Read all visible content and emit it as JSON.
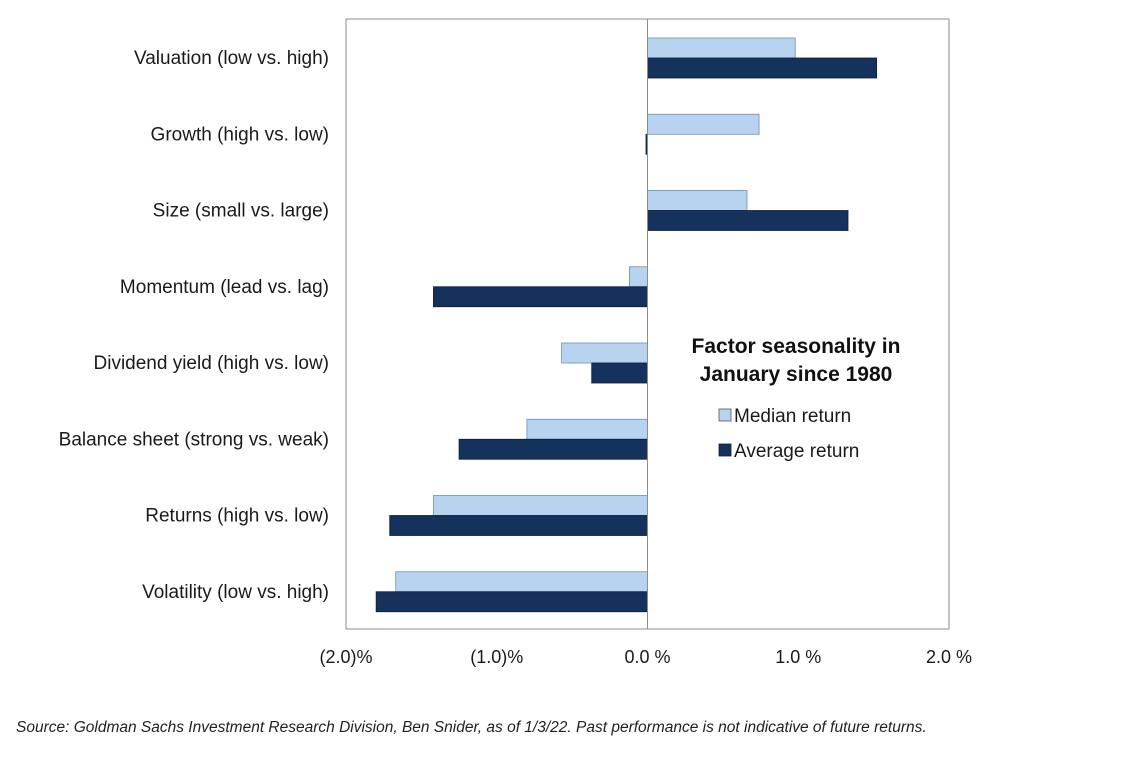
{
  "chart_data": {
    "type": "bar",
    "orientation": "horizontal",
    "title": "Factor seasonality in January since 1980",
    "title_lines": [
      "Factor seasonality in",
      "January since 1980"
    ],
    "categories": [
      "Valuation (low vs. high)",
      "Growth (high vs. low)",
      "Size (small vs. large)",
      "Momentum (lead vs. lag)",
      "Dividend yield (high vs. low)",
      "Balance sheet (strong vs. weak)",
      "Returns (high vs. low)",
      "Volatility (low vs. high)"
    ],
    "series": [
      {
        "name": "Median return",
        "color": "#b7d3f0",
        "values": [
          0.98,
          0.74,
          0.66,
          -0.12,
          -0.57,
          -0.8,
          -1.42,
          -1.67
        ]
      },
      {
        "name": "Average return",
        "color": "#15325d",
        "values": [
          1.52,
          -0.01,
          1.33,
          -1.42,
          -0.37,
          -1.25,
          -1.71,
          -1.8
        ]
      }
    ],
    "xlim": [
      -2.0,
      2.0
    ],
    "x_ticks": [
      -2.0,
      -1.0,
      0.0,
      1.0,
      2.0
    ],
    "x_tick_labels": [
      "(2.0)%",
      "(1.0)%",
      "0.0 %",
      "1.0 %",
      "2.0 %"
    ],
    "xlabel": "",
    "ylabel": "",
    "grid": false,
    "legend_position": "center-right"
  },
  "source_note": "Source: Goldman Sachs Investment Research Division, Ben Snider, as of 1/3/22. Past performance is not indicative of future returns."
}
